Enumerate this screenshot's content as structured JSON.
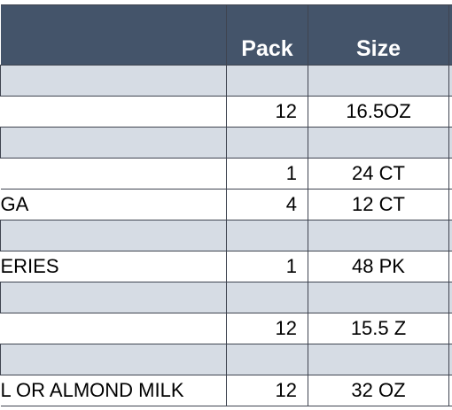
{
  "table": {
    "headers": {
      "pack": "Pack",
      "size": "Size"
    },
    "rows": [
      {
        "type": "band"
      },
      {
        "type": "item",
        "description": "",
        "pack": "12",
        "size": "16.5OZ"
      },
      {
        "type": "band"
      },
      {
        "type": "item",
        "description": "",
        "pack": "1",
        "size": "24 CT"
      },
      {
        "type": "item",
        "description": "GA",
        "pack": "4",
        "size": "12 CT"
      },
      {
        "type": "band"
      },
      {
        "type": "item",
        "description": "ERIES",
        "pack": "1",
        "size": "48 PK"
      },
      {
        "type": "band"
      },
      {
        "type": "item",
        "description": "",
        "pack": "12",
        "size": "15.5 Z"
      },
      {
        "type": "band"
      },
      {
        "type": "item",
        "description": "L OR ALMOND MILK",
        "pack": "12",
        "size": "32 OZ"
      }
    ]
  },
  "colors": {
    "header_bg": "#44546a",
    "band_bg": "#d6dce4",
    "border": "#3f4450"
  }
}
